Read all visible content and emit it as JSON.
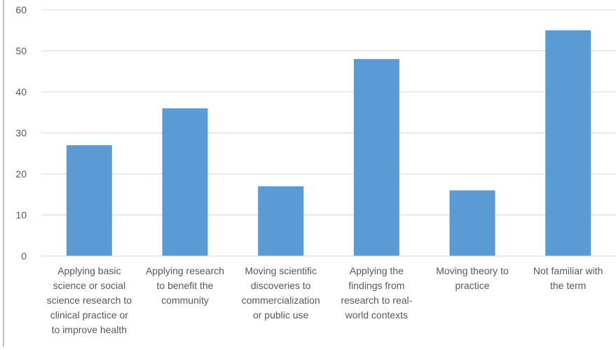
{
  "chart_data": {
    "type": "bar",
    "title": "",
    "xlabel": "",
    "ylabel": "",
    "ylim": [
      0,
      60
    ],
    "yticks": [
      0,
      10,
      20,
      30,
      40,
      50,
      60
    ],
    "grid": true,
    "legend": "none",
    "categories": [
      [
        "Applying basic",
        "science or social",
        "science research to",
        "clinical practice or",
        "to improve health"
      ],
      [
        "Applying research",
        "to benefit the",
        "community"
      ],
      [
        "Moving scientific",
        "discoveries to",
        "commercialization",
        "or public use"
      ],
      [
        "Applying the",
        "findings from",
        "research to real-",
        "world contexts"
      ],
      [
        "Moving theory to",
        "practice"
      ],
      [
        "Not familiar with",
        "the term"
      ]
    ],
    "values": [
      27,
      36,
      17,
      48,
      16,
      55
    ],
    "colors": {
      "bar": "#5b9bd5",
      "grid": "#d9d9d9",
      "axis": "#d9d9d9",
      "text": "#595959",
      "frame": "#bfbfbf"
    }
  }
}
